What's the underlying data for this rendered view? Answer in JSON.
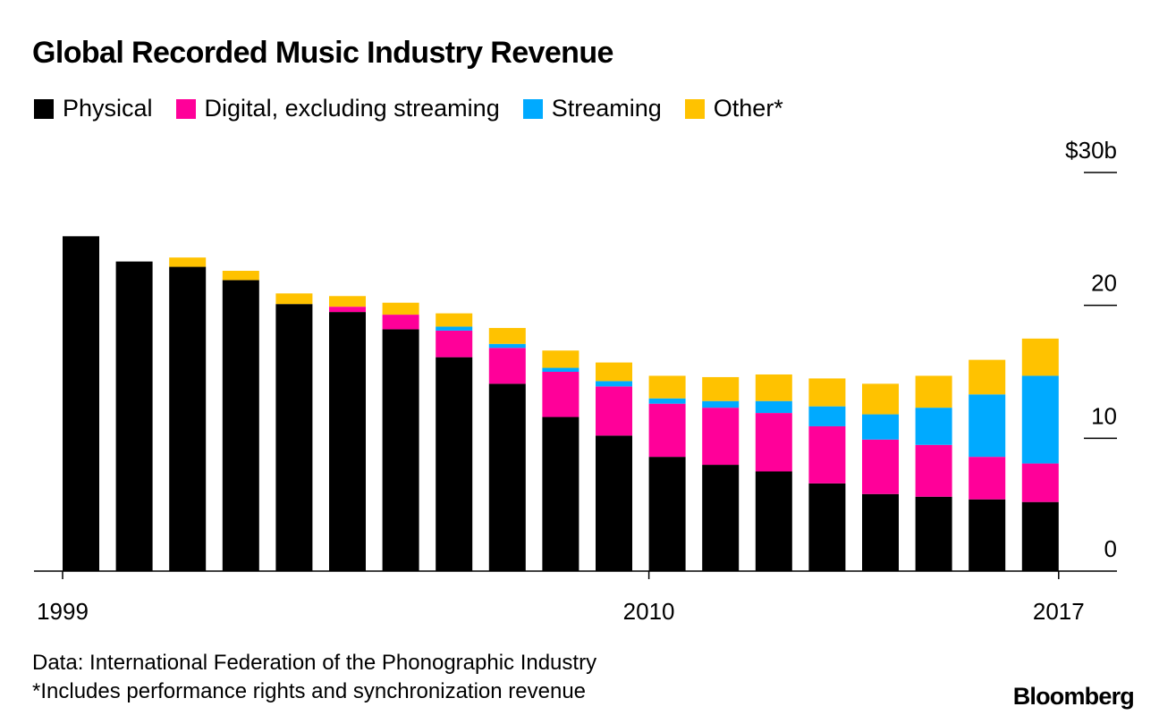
{
  "title": "Global Recorded Music Industry Revenue",
  "legend": [
    {
      "label": "Physical",
      "color": "#000000"
    },
    {
      "label": "Digital, excluding streaming",
      "color": "#ff0099"
    },
    {
      "label": "Streaming",
      "color": "#00aaff"
    },
    {
      "label": "Other*",
      "color": "#ffc200"
    }
  ],
  "source": {
    "line1": "Data: International Federation of the Phonographic Industry",
    "line2": "*Includes performance rights and synchronization revenue"
  },
  "brand": "Bloomberg",
  "chart_data": {
    "type": "bar",
    "stacked": true,
    "categories": [
      "1999",
      "2000",
      "2001",
      "2002",
      "2003",
      "2004",
      "2005",
      "2006",
      "2007",
      "2008",
      "2009",
      "2010",
      "2011",
      "2012",
      "2013",
      "2014",
      "2015",
      "2016",
      "2017"
    ],
    "x_tick_labels": [
      "1999",
      "2010",
      "2017"
    ],
    "y_tick_labels": [
      "$30b",
      "20",
      "10",
      "0"
    ],
    "y_ticks": [
      30,
      20,
      10,
      0
    ],
    "ylim": [
      0,
      30
    ],
    "series": [
      {
        "name": "Physical",
        "color": "#000000",
        "values": [
          25.2,
          23.3,
          22.9,
          21.9,
          20.1,
          19.5,
          18.2,
          16.1,
          14.1,
          11.6,
          10.2,
          8.6,
          8.0,
          7.5,
          6.6,
          5.8,
          5.6,
          5.4,
          5.2
        ]
      },
      {
        "name": "Digital, excluding streaming",
        "color": "#ff0099",
        "values": [
          0,
          0,
          0,
          0,
          0,
          0.4,
          1.1,
          2.0,
          2.7,
          3.4,
          3.7,
          4.0,
          4.3,
          4.4,
          4.3,
          4.1,
          3.9,
          3.2,
          2.9
        ]
      },
      {
        "name": "Streaming",
        "color": "#00aaff",
        "values": [
          0,
          0,
          0,
          0,
          0,
          0,
          0,
          0.3,
          0.3,
          0.3,
          0.4,
          0.4,
          0.5,
          0.9,
          1.5,
          1.9,
          2.8,
          4.7,
          6.6
        ]
      },
      {
        "name": "Other*",
        "color": "#ffc200",
        "values": [
          0,
          0,
          0.7,
          0.7,
          0.8,
          0.8,
          0.9,
          1.0,
          1.2,
          1.3,
          1.4,
          1.7,
          1.8,
          2.0,
          2.1,
          2.3,
          2.4,
          2.6,
          2.8
        ]
      }
    ]
  }
}
